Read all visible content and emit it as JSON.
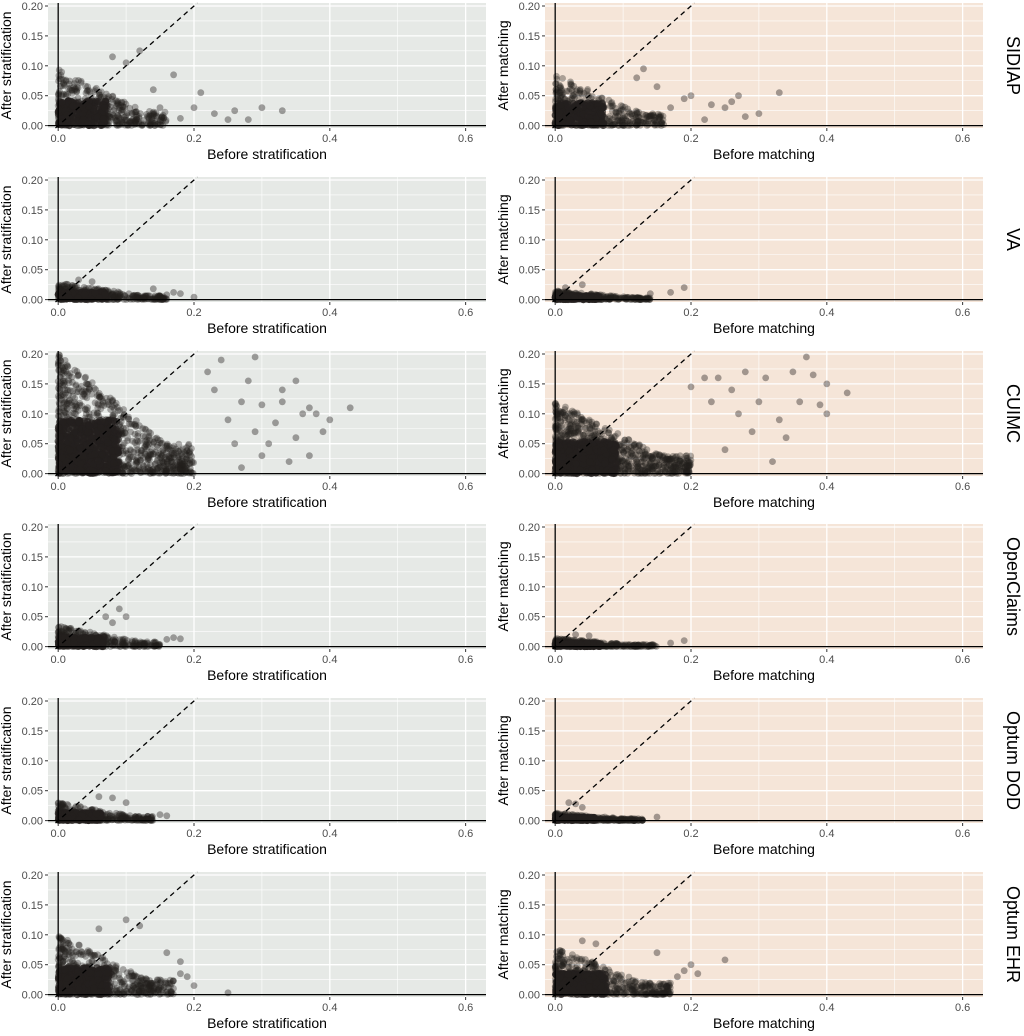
{
  "figure": {
    "strip_labels": [
      "SIDIAP",
      "VA",
      "CUIMC",
      "OpenClaims",
      "Optum DOD",
      "Optum EHR"
    ],
    "columns": [
      {
        "xlabel": "Before stratification",
        "ylabel": "After stratification",
        "panel_background": "#e6e9e6"
      },
      {
        "xlabel": "Before matching",
        "ylabel": "After matching",
        "panel_background": "#f5e5d8"
      }
    ],
    "point_color": "#231f1e",
    "reference_line": "y = x (dashed)"
  },
  "chart_data": [
    {
      "type": "scatter",
      "panel": "SIDIAP / stratification",
      "xlabel": "Before stratification",
      "ylabel": "After stratification",
      "xlim": [
        -0.015,
        0.63
      ],
      "ylim": [
        -0.004,
        0.205
      ],
      "xticks": [
        "0.0",
        "0.2",
        "0.4",
        "0.6"
      ],
      "yticks": [
        "0.00",
        "0.05",
        "0.10",
        "0.15",
        "0.20"
      ],
      "grid": true,
      "reference_line": "y = x",
      "cloud": {
        "x_max": 0.16,
        "y_max": 0.095,
        "count": 380
      },
      "points": [
        [
          0.12,
          0.125
        ],
        [
          0.1,
          0.105
        ],
        [
          0.17,
          0.085
        ],
        [
          0.14,
          0.06
        ],
        [
          0.2,
          0.03
        ],
        [
          0.23,
          0.02
        ],
        [
          0.25,
          0.01
        ],
        [
          0.26,
          0.025
        ],
        [
          0.28,
          0.01
        ],
        [
          0.3,
          0.03
        ],
        [
          0.33,
          0.025
        ],
        [
          0.21,
          0.055
        ],
        [
          0.15,
          0.03
        ],
        [
          0.18,
          0.012
        ],
        [
          0.08,
          0.115
        ]
      ]
    },
    {
      "type": "scatter",
      "panel": "SIDIAP / matching",
      "xlabel": "Before matching",
      "ylabel": "After matching",
      "xlim": [
        -0.015,
        0.63
      ],
      "ylim": [
        -0.004,
        0.205
      ],
      "xticks": [
        "0.0",
        "0.2",
        "0.4",
        "0.6"
      ],
      "yticks": [
        "0.00",
        "0.05",
        "0.10",
        "0.15",
        "0.20"
      ],
      "grid": true,
      "reference_line": "y = x",
      "cloud": {
        "x_max": 0.16,
        "y_max": 0.085,
        "count": 360
      },
      "points": [
        [
          0.13,
          0.095
        ],
        [
          0.12,
          0.08
        ],
        [
          0.2,
          0.05
        ],
        [
          0.23,
          0.035
        ],
        [
          0.25,
          0.03
        ],
        [
          0.26,
          0.04
        ],
        [
          0.27,
          0.05
        ],
        [
          0.3,
          0.02
        ],
        [
          0.28,
          0.015
        ],
        [
          0.33,
          0.055
        ],
        [
          0.19,
          0.045
        ],
        [
          0.17,
          0.03
        ],
        [
          0.15,
          0.065
        ],
        [
          0.22,
          0.01
        ]
      ]
    },
    {
      "type": "scatter",
      "panel": "VA / stratification",
      "xlabel": "Before stratification",
      "ylabel": "After stratification",
      "xlim": [
        -0.015,
        0.63
      ],
      "ylim": [
        -0.004,
        0.205
      ],
      "xticks": [
        "0.0",
        "0.2",
        "0.4",
        "0.6"
      ],
      "yticks": [
        "0.00",
        "0.05",
        "0.10",
        "0.15",
        "0.20"
      ],
      "grid": true,
      "reference_line": "y = x",
      "cloud": {
        "x_max": 0.16,
        "y_max": 0.028,
        "count": 320
      },
      "points": [
        [
          0.17,
          0.012
        ],
        [
          0.16,
          0.008
        ],
        [
          0.18,
          0.01
        ],
        [
          0.2,
          0.004
        ],
        [
          0.14,
          0.018
        ],
        [
          0.03,
          0.033
        ],
        [
          0.05,
          0.03
        ]
      ]
    },
    {
      "type": "scatter",
      "panel": "VA / matching",
      "xlabel": "Before matching",
      "ylabel": "After matching",
      "xlim": [
        -0.015,
        0.63
      ],
      "ylim": [
        -0.004,
        0.205
      ],
      "xticks": [
        "0.0",
        "0.2",
        "0.4",
        "0.6"
      ],
      "yticks": [
        "0.00",
        "0.05",
        "0.10",
        "0.15",
        "0.20"
      ],
      "grid": true,
      "reference_line": "y = x",
      "cloud": {
        "x_max": 0.14,
        "y_max": 0.015,
        "count": 300
      },
      "points": [
        [
          0.19,
          0.02
        ],
        [
          0.17,
          0.012
        ],
        [
          0.14,
          0.01
        ],
        [
          0.015,
          0.02
        ],
        [
          0.04,
          0.025
        ]
      ]
    },
    {
      "type": "scatter",
      "panel": "CUIMC / stratification",
      "xlabel": "Before stratification",
      "ylabel": "After stratification",
      "xlim": [
        -0.015,
        0.63
      ],
      "ylim": [
        -0.004,
        0.205
      ],
      "xticks": [
        "0.0",
        "0.2",
        "0.4",
        "0.6"
      ],
      "yticks": [
        "0.00",
        "0.05",
        "0.10",
        "0.15",
        "0.20"
      ],
      "grid": true,
      "reference_line": "y = x",
      "cloud": {
        "x_max": 0.2,
        "y_max": 0.2,
        "count": 900
      },
      "points": [
        [
          0.24,
          0.19
        ],
        [
          0.28,
          0.155
        ],
        [
          0.33,
          0.14
        ],
        [
          0.35,
          0.155
        ],
        [
          0.36,
          0.1
        ],
        [
          0.37,
          0.11
        ],
        [
          0.38,
          0.1
        ],
        [
          0.4,
          0.09
        ],
        [
          0.43,
          0.11
        ],
        [
          0.26,
          0.05
        ],
        [
          0.3,
          0.03
        ],
        [
          0.34,
          0.02
        ],
        [
          0.32,
          0.085
        ],
        [
          0.27,
          0.12
        ],
        [
          0.22,
          0.17
        ],
        [
          0.3,
          0.115
        ],
        [
          0.35,
          0.06
        ],
        [
          0.25,
          0.09
        ],
        [
          0.29,
          0.07
        ],
        [
          0.31,
          0.05
        ],
        [
          0.37,
          0.03
        ],
        [
          0.23,
          0.14
        ],
        [
          0.27,
          0.01
        ],
        [
          0.39,
          0.07
        ],
        [
          0.33,
          0.12
        ],
        [
          0.29,
          0.195
        ]
      ]
    },
    {
      "type": "scatter",
      "panel": "CUIMC / matching",
      "xlabel": "Before matching",
      "ylabel": "After matching",
      "xlim": [
        -0.015,
        0.63
      ],
      "ylim": [
        -0.004,
        0.205
      ],
      "xticks": [
        "0.0",
        "0.2",
        "0.4",
        "0.6"
      ],
      "yticks": [
        "0.00",
        "0.05",
        "0.10",
        "0.15",
        "0.20"
      ],
      "grid": true,
      "reference_line": "y = x",
      "cloud": {
        "x_max": 0.2,
        "y_max": 0.12,
        "count": 800
      },
      "points": [
        [
          0.37,
          0.195
        ],
        [
          0.35,
          0.17
        ],
        [
          0.38,
          0.165
        ],
        [
          0.4,
          0.15
        ],
        [
          0.43,
          0.135
        ],
        [
          0.39,
          0.115
        ],
        [
          0.4,
          0.1
        ],
        [
          0.33,
          0.09
        ],
        [
          0.31,
          0.16
        ],
        [
          0.26,
          0.14
        ],
        [
          0.28,
          0.17
        ],
        [
          0.24,
          0.16
        ],
        [
          0.3,
          0.12
        ],
        [
          0.29,
          0.07
        ],
        [
          0.34,
          0.06
        ],
        [
          0.25,
          0.04
        ],
        [
          0.27,
          0.1
        ],
        [
          0.22,
          0.16
        ],
        [
          0.36,
          0.12
        ],
        [
          0.23,
          0.12
        ],
        [
          0.32,
          0.02
        ],
        [
          0.2,
          0.145
        ]
      ]
    },
    {
      "type": "scatter",
      "panel": "OpenClaims / stratification",
      "xlabel": "Before stratification",
      "ylabel": "After stratification",
      "xlim": [
        -0.015,
        0.63
      ],
      "ylim": [
        -0.004,
        0.205
      ],
      "xticks": [
        "0.0",
        "0.2",
        "0.4",
        "0.6"
      ],
      "yticks": [
        "0.00",
        "0.05",
        "0.10",
        "0.15",
        "0.20"
      ],
      "grid": true,
      "reference_line": "y = x",
      "cloud": {
        "x_max": 0.15,
        "y_max": 0.035,
        "count": 320
      },
      "points": [
        [
          0.1,
          0.05
        ],
        [
          0.09,
          0.063
        ],
        [
          0.07,
          0.05
        ],
        [
          0.08,
          0.04
        ],
        [
          0.17,
          0.015
        ],
        [
          0.18,
          0.013
        ],
        [
          0.16,
          0.012
        ]
      ]
    },
    {
      "type": "scatter",
      "panel": "OpenClaims / matching",
      "xlabel": "Before matching",
      "ylabel": "After matching",
      "xlim": [
        -0.015,
        0.63
      ],
      "ylim": [
        -0.004,
        0.205
      ],
      "xticks": [
        "0.0",
        "0.2",
        "0.4",
        "0.6"
      ],
      "yticks": [
        "0.00",
        "0.05",
        "0.10",
        "0.15",
        "0.20"
      ],
      "grid": true,
      "reference_line": "y = x",
      "cloud": {
        "x_max": 0.15,
        "y_max": 0.014,
        "count": 300
      },
      "points": [
        [
          0.19,
          0.01
        ],
        [
          0.17,
          0.006
        ],
        [
          0.03,
          0.02
        ],
        [
          0.05,
          0.018
        ]
      ]
    },
    {
      "type": "scatter",
      "panel": "Optum DOD / stratification",
      "xlabel": "Before stratification",
      "ylabel": "After stratification",
      "xlim": [
        -0.015,
        0.63
      ],
      "ylim": [
        -0.004,
        0.205
      ],
      "xticks": [
        "0.0",
        "0.2",
        "0.4",
        "0.6"
      ],
      "yticks": [
        "0.00",
        "0.05",
        "0.10",
        "0.15",
        "0.20"
      ],
      "grid": true,
      "reference_line": "y = x",
      "cloud": {
        "x_max": 0.14,
        "y_max": 0.03,
        "count": 320
      },
      "points": [
        [
          0.08,
          0.038
        ],
        [
          0.06,
          0.04
        ],
        [
          0.1,
          0.03
        ],
        [
          0.15,
          0.01
        ],
        [
          0.16,
          0.008
        ]
      ]
    },
    {
      "type": "scatter",
      "panel": "Optum DOD / matching",
      "xlabel": "Before matching",
      "ylabel": "After matching",
      "xlim": [
        -0.015,
        0.63
      ],
      "ylim": [
        -0.004,
        0.205
      ],
      "xticks": [
        "0.0",
        "0.2",
        "0.4",
        "0.6"
      ],
      "yticks": [
        "0.00",
        "0.05",
        "0.10",
        "0.15",
        "0.20"
      ],
      "grid": true,
      "reference_line": "y = x",
      "cloud": {
        "x_max": 0.13,
        "y_max": 0.013,
        "count": 280
      },
      "points": [
        [
          0.15,
          0.006
        ],
        [
          0.02,
          0.03
        ],
        [
          0.04,
          0.022
        ],
        [
          0.03,
          0.028
        ]
      ]
    },
    {
      "type": "scatter",
      "panel": "Optum EHR / stratification",
      "xlabel": "Before stratification",
      "ylabel": "After stratification",
      "xlim": [
        -0.015,
        0.63
      ],
      "ylim": [
        -0.004,
        0.205
      ],
      "xticks": [
        "0.0",
        "0.2",
        "0.4",
        "0.6"
      ],
      "yticks": [
        "0.00",
        "0.05",
        "0.10",
        "0.15",
        "0.20"
      ],
      "grid": true,
      "reference_line": "y = x",
      "cloud": {
        "x_max": 0.17,
        "y_max": 0.1,
        "count": 520
      },
      "points": [
        [
          0.1,
          0.125
        ],
        [
          0.12,
          0.115
        ],
        [
          0.06,
          0.11
        ],
        [
          0.18,
          0.035
        ],
        [
          0.2,
          0.015
        ],
        [
          0.19,
          0.03
        ],
        [
          0.25,
          0.003
        ],
        [
          0.16,
          0.07
        ],
        [
          0.18,
          0.055
        ]
      ]
    },
    {
      "type": "scatter",
      "panel": "Optum EHR / matching",
      "xlabel": "Before matching",
      "ylabel": "After matching",
      "xlim": [
        -0.015,
        0.63
      ],
      "ylim": [
        -0.004,
        0.205
      ],
      "xticks": [
        "0.0",
        "0.2",
        "0.4",
        "0.6"
      ],
      "yticks": [
        "0.00",
        "0.05",
        "0.10",
        "0.15",
        "0.20"
      ],
      "grid": true,
      "reference_line": "y = x",
      "cloud": {
        "x_max": 0.17,
        "y_max": 0.08,
        "count": 480
      },
      "points": [
        [
          0.25,
          0.058
        ],
        [
          0.2,
          0.05
        ],
        [
          0.19,
          0.04
        ],
        [
          0.18,
          0.03
        ],
        [
          0.21,
          0.035
        ],
        [
          0.04,
          0.09
        ],
        [
          0.06,
          0.085
        ],
        [
          0.15,
          0.07
        ]
      ]
    }
  ]
}
